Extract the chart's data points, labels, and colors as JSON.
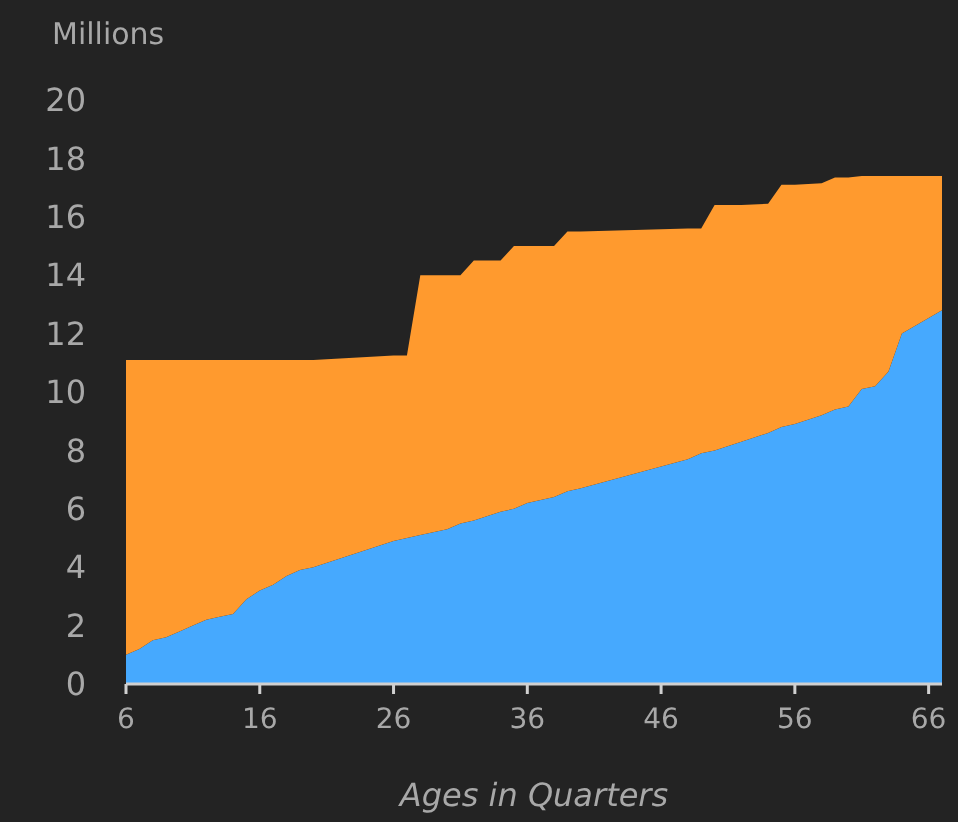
{
  "chart_data": {
    "type": "area",
    "stacked": true,
    "ylabel": "Millions",
    "xlabel": "Ages in Quarters",
    "x": [
      6,
      7,
      8,
      9,
      10,
      11,
      12,
      13,
      14,
      15,
      16,
      17,
      18,
      19,
      20,
      22,
      24,
      26,
      27,
      28,
      30,
      31,
      32,
      34,
      35,
      36,
      38,
      39,
      40,
      44,
      48,
      49,
      50,
      52,
      54,
      55,
      56,
      58,
      59,
      60,
      61,
      62,
      63,
      64,
      67
    ],
    "series": [
      {
        "color": "#46a9fe",
        "values": [
          1.0,
          1.2,
          1.5,
          1.6,
          1.8,
          2.0,
          2.2,
          2.3,
          2.4,
          2.9,
          3.2,
          3.4,
          3.7,
          3.9,
          4.0,
          4.3,
          4.6,
          4.9,
          5.0,
          5.1,
          5.3,
          5.5,
          5.6,
          5.9,
          6.0,
          6.2,
          6.4,
          6.6,
          6.7,
          7.2,
          7.7,
          7.9,
          8.0,
          8.3,
          8.6,
          8.8,
          8.9,
          9.2,
          9.4,
          9.5,
          10.1,
          10.2,
          10.7,
          12.0,
          12.8
        ]
      },
      {
        "color": "#ff9a2e",
        "values": [
          10.1,
          9.9,
          9.6,
          9.5,
          9.3,
          9.1,
          8.9,
          8.8,
          8.7,
          8.2,
          7.9,
          7.7,
          7.4,
          7.2,
          7.1,
          6.85,
          6.6,
          6.35,
          6.25,
          8.9,
          8.7,
          8.5,
          8.9,
          8.6,
          9.0,
          8.8,
          8.6,
          8.9,
          8.8,
          8.35,
          7.9,
          7.7,
          8.4,
          8.1,
          7.85,
          8.3,
          8.2,
          7.95,
          7.95,
          7.85,
          7.3,
          7.2,
          6.7,
          5.4,
          4.6
        ]
      }
    ],
    "xlim": [
      6,
      67
    ],
    "xticks": [
      6,
      16,
      26,
      36,
      46,
      56,
      66
    ],
    "ylim": [
      0,
      20
    ],
    "yticks": [
      0,
      2,
      4,
      6,
      8,
      10,
      12,
      14,
      16,
      18,
      20
    ],
    "grid": false
  }
}
